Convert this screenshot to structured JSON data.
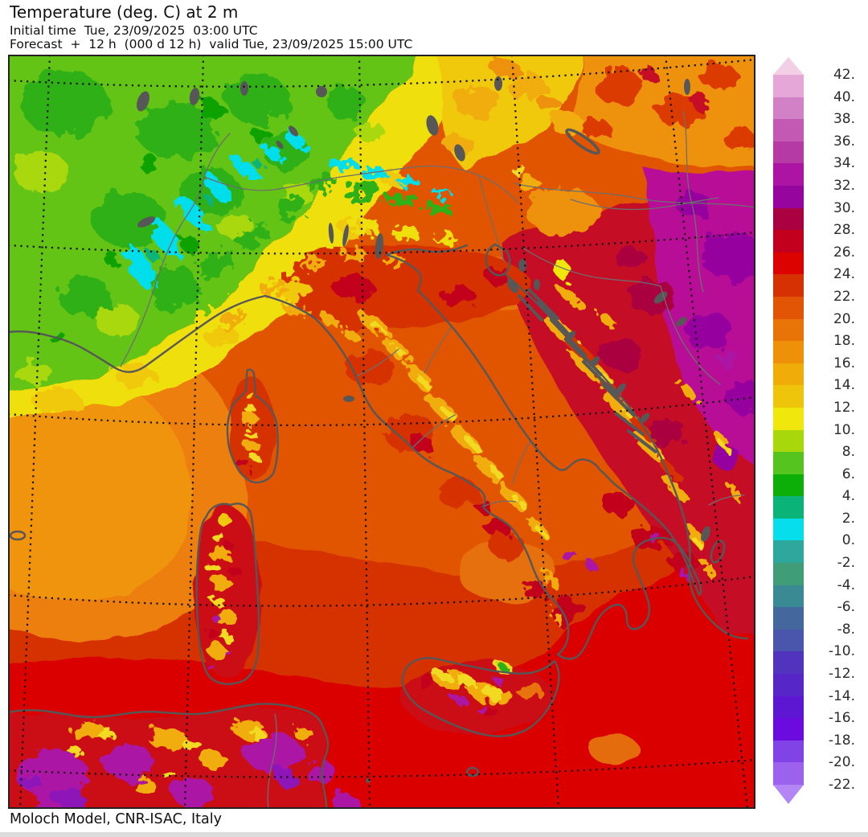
{
  "header": {
    "title": "Temperature (deg. C) at 2 m",
    "initial_time_line": "Initial time  Tue, 23/09/2025  03:00 UTC",
    "forecast_line": "Forecast  +  12 h  (000 d 12 h)  valid Tue, 23/09/2025 15:00 UTC"
  },
  "footer": {
    "credit": "Moloch Model, CNR-ISAC, Italy"
  },
  "legend": {
    "unit": "deg C",
    "arrow_top_color": "#F3CFE6",
    "arrow_bottom_color": "#B385F5",
    "boundary_labels": [
      "42.",
      "40.",
      "38.",
      "36.",
      "34.",
      "32.",
      "30.",
      "28.",
      "26.",
      "24.",
      "22.",
      "20.",
      "18.",
      "16.",
      "14.",
      "12.",
      "10.",
      "8.",
      "6.",
      "4.",
      "2.",
      "0.",
      "-2.",
      "-4.",
      "-6.",
      "-8.",
      "-10.",
      "-12.",
      "-14.",
      "-16.",
      "-18.",
      "-20.",
      "-22."
    ],
    "band_colors": [
      "#E5A6D8",
      "#D381C6",
      "#C459B4",
      "#B63AA6",
      "#AC14A4",
      "#96069E",
      "#AA0140",
      "#C2001E",
      "#DB0200",
      "#D63103",
      "#E15504",
      "#E87307",
      "#EE9108",
      "#F0AD09",
      "#EFC50B",
      "#F0E70D",
      "#A8D80C",
      "#55C41E",
      "#0CAE08",
      "#0AB478",
      "#06DEEC",
      "#2EA89C",
      "#3F9E78",
      "#3A8A96",
      "#44679E",
      "#4A55AC",
      "#5134BE",
      "#5726C6",
      "#5D17D2",
      "#6B0BE0",
      "#8243E6",
      "#9C62EE"
    ]
  }
}
